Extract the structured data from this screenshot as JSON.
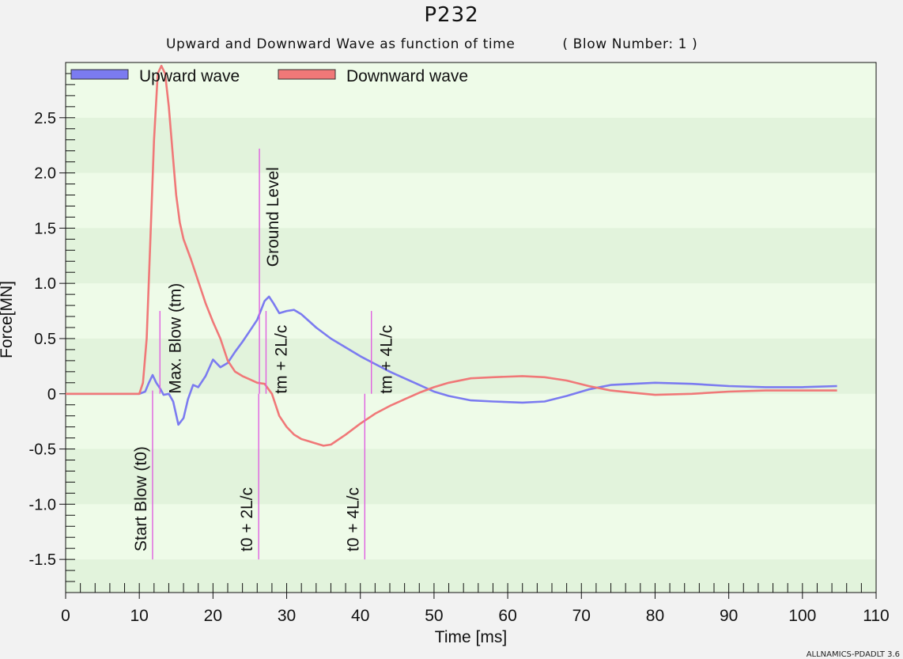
{
  "header": {
    "title": "P232",
    "subtitle": "Upward and Downward Wave as function of time          ( Blow Number: 1 )"
  },
  "footer": {
    "credit": "ALLNAMICS-PDADLT 3.6"
  },
  "colors": {
    "upward": "#7b7bf0",
    "downward": "#f07878",
    "marker": "#e060e0",
    "plot_bg": "#eefbe8",
    "band_dark": "#e2f3dc"
  },
  "chart_data": {
    "type": "line",
    "title": "P232",
    "subtitle": "Upward and Downward Wave as function of time          ( Blow Number: 1 )",
    "xlabel": "Time [ms]",
    "ylabel": "Force[MN]",
    "xlim": [
      0,
      110
    ],
    "ylim": [
      -1.8,
      3.0
    ],
    "x_ticks": [
      0,
      10,
      20,
      30,
      40,
      50,
      60,
      70,
      80,
      90,
      100,
      110
    ],
    "x_tick_labels": [
      "0",
      "10",
      "20",
      "30",
      "40",
      "50",
      "60",
      "70",
      "80",
      "90",
      "100",
      "110"
    ],
    "y_ticks": [
      2.5,
      2.0,
      1.5,
      1.0,
      0.5,
      0,
      -0.5,
      -1.0,
      -1.5
    ],
    "y_tick_labels": [
      "2.5",
      "2.0",
      "1.5",
      "1.0",
      "0.5",
      "0",
      "-0.5",
      "-1.0",
      "-1.5"
    ],
    "legend_position": "top-left",
    "series": [
      {
        "name": "Upward wave",
        "x": [
          0,
          10,
          10.8,
          11.3,
          11.8,
          12.3,
          12.8,
          13.3,
          14,
          14.6,
          15.3,
          16,
          16.6,
          17.3,
          18,
          19,
          20,
          21,
          22,
          23,
          24,
          25,
          26,
          27,
          27.6,
          28.2,
          29,
          30,
          31,
          32,
          33,
          34,
          36,
          38,
          40,
          42,
          44,
          46,
          48,
          50,
          52,
          55,
          58,
          62,
          65,
          68,
          71,
          74,
          77,
          80,
          85,
          90,
          95,
          100,
          104.7
        ],
        "y": [
          0,
          0,
          0.02,
          0.1,
          0.17,
          0.1,
          0.05,
          -0.01,
          0.0,
          -0.07,
          -0.28,
          -0.22,
          -0.05,
          0.08,
          0.06,
          0.16,
          0.31,
          0.24,
          0.28,
          0.38,
          0.47,
          0.57,
          0.67,
          0.84,
          0.88,
          0.82,
          0.73,
          0.75,
          0.76,
          0.72,
          0.66,
          0.6,
          0.5,
          0.42,
          0.34,
          0.27,
          0.2,
          0.14,
          0.08,
          0.02,
          -0.02,
          -0.06,
          -0.07,
          -0.08,
          -0.07,
          -0.02,
          0.04,
          0.08,
          0.09,
          0.1,
          0.09,
          0.07,
          0.06,
          0.06,
          0.07
        ]
      },
      {
        "name": "Downward wave",
        "x": [
          0,
          10,
          10.5,
          11,
          11.5,
          12,
          12.5,
          13,
          13.5,
          14,
          14.5,
          15,
          15.5,
          16,
          17,
          18,
          19,
          20,
          21,
          22,
          23,
          24,
          25,
          26,
          27,
          28,
          29,
          30,
          31,
          32,
          33,
          34,
          35,
          36,
          38,
          40,
          42,
          44,
          46,
          48,
          50,
          52,
          55,
          58,
          62,
          65,
          68,
          71,
          74,
          77,
          80,
          85,
          90,
          95,
          100,
          104.7
        ],
        "y": [
          0,
          0,
          0.1,
          0.5,
          1.4,
          2.3,
          2.9,
          2.97,
          2.9,
          2.6,
          2.2,
          1.8,
          1.55,
          1.4,
          1.22,
          1.02,
          0.82,
          0.65,
          0.5,
          0.3,
          0.2,
          0.16,
          0.13,
          0.1,
          0.09,
          0.0,
          -0.2,
          -0.3,
          -0.37,
          -0.41,
          -0.43,
          -0.45,
          -0.47,
          -0.46,
          -0.37,
          -0.27,
          -0.18,
          -0.11,
          -0.05,
          0.01,
          0.06,
          0.1,
          0.14,
          0.15,
          0.16,
          0.15,
          0.12,
          0.07,
          0.03,
          0.01,
          -0.01,
          0.0,
          0.02,
          0.03,
          0.03,
          0.03
        ]
      }
    ],
    "markers": [
      {
        "label": "Start Blow (t0)",
        "x": 11.8,
        "y_top": 0.03,
        "y_bottom": -1.5,
        "label_side": "below"
      },
      {
        "label": "Max. Blow (tm)",
        "x": 12.8,
        "y_top": 0.75,
        "y_bottom": 0.0,
        "label_side": "right"
      },
      {
        "label": "t0 + 2L/c",
        "x": 26.2,
        "y_top": 0.0,
        "y_bottom": -1.5,
        "label_side": "below"
      },
      {
        "label": "Ground Level",
        "x": 26.3,
        "y_top": 2.22,
        "y_bottom": 0.0,
        "label_side": "above"
      },
      {
        "label": "tm + 2L/c",
        "x": 27.2,
        "y_top": 0.75,
        "y_bottom": 0.0,
        "label_side": "right"
      },
      {
        "label": "t0 + 4L/c",
        "x": 40.6,
        "y_top": 0.0,
        "y_bottom": -1.5,
        "label_side": "below"
      },
      {
        "label": "tm + 4L/c",
        "x": 41.5,
        "y_top": 0.75,
        "y_bottom": 0.0,
        "label_side": "right"
      }
    ]
  }
}
